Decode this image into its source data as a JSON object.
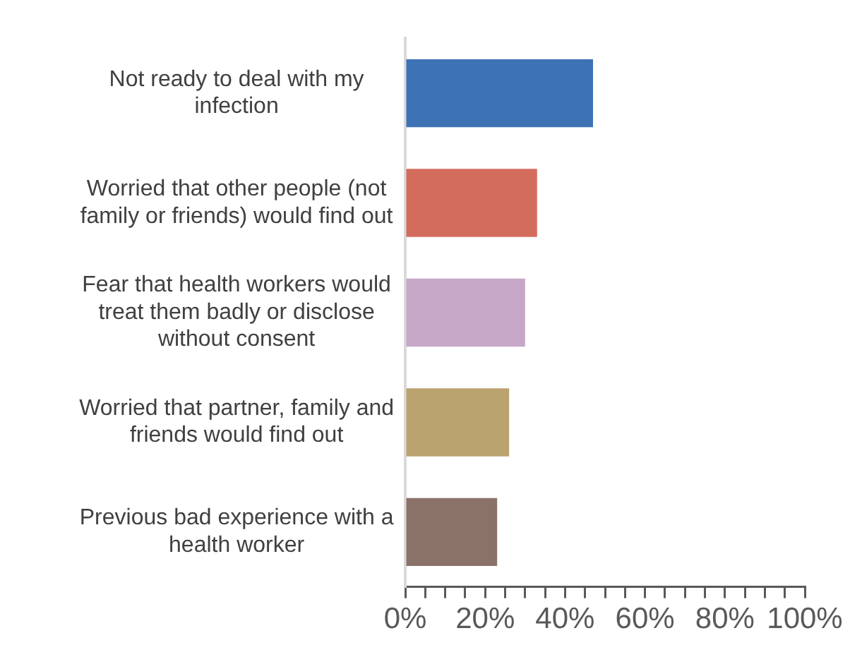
{
  "chart_data": {
    "type": "bar",
    "orientation": "horizontal",
    "categories": [
      "Not ready to deal with my infection",
      "Worried that other people (not family or friends) would find out",
      "Fear that health workers would treat them badly or disclose without consent",
      "Worried that partner, family and friends would find out",
      "Previous bad experience with a health worker"
    ],
    "values": [
      47,
      33,
      30,
      26,
      23
    ],
    "colors": [
      "#3d72b4",
      "#d46c5d",
      "#c6a7c8",
      "#bba370",
      "#8b7268"
    ],
    "xlim": [
      0,
      100
    ],
    "xticks": [
      {
        "value": 0,
        "label": "0%"
      },
      {
        "value": 5,
        "label": null
      },
      {
        "value": 10,
        "label": null
      },
      {
        "value": 15,
        "label": null
      },
      {
        "value": 20,
        "label": "20%"
      },
      {
        "value": 25,
        "label": null
      },
      {
        "value": 30,
        "label": null
      },
      {
        "value": 35,
        "label": null
      },
      {
        "value": 40,
        "label": "40%"
      },
      {
        "value": 45,
        "label": null
      },
      {
        "value": 50,
        "label": null
      },
      {
        "value": 55,
        "label": null
      },
      {
        "value": 60,
        "label": "60%"
      },
      {
        "value": 65,
        "label": null
      },
      {
        "value": 70,
        "label": null
      },
      {
        "value": 75,
        "label": null
      },
      {
        "value": 80,
        "label": "80%"
      },
      {
        "value": 85,
        "label": null
      },
      {
        "value": 90,
        "label": null
      },
      {
        "value": 95,
        "label": null
      },
      {
        "value": 100,
        "label": "100%"
      }
    ],
    "grid": false,
    "legend": false
  }
}
